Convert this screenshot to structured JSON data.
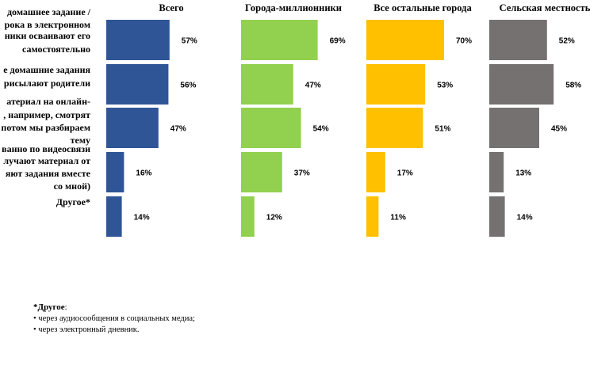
{
  "chart_data": {
    "type": "bar",
    "orientation": "horizontal",
    "layout": "small-multiples",
    "categories": [
      [
        "домашнее задание /",
        "рока в электронном",
        "ники осваивают его",
        "самостоятельно"
      ],
      [
        "е домашние задания",
        "рисылают родители"
      ],
      [
        "атериал на онлайн-",
        ", например, смотрят",
        "потом мы разбираем",
        "тему"
      ],
      [
        "ванно по видеосвязи",
        "лучают материал от",
        "яют задания вместе",
        "со мной)"
      ],
      [
        "Другое*"
      ]
    ],
    "series": [
      {
        "name": "Всего",
        "color": "#2F5597",
        "values": [
          57,
          56,
          47,
          16,
          14
        ]
      },
      {
        "name": "Города-миллионники",
        "color": "#92D050",
        "values": [
          69,
          47,
          54,
          37,
          12
        ]
      },
      {
        "name": "Все остальные города",
        "color": "#FFC000",
        "values": [
          70,
          53,
          51,
          17,
          11
        ]
      },
      {
        "name": "Сельская местность",
        "color": "#767171",
        "values": [
          52,
          58,
          45,
          13,
          14
        ]
      }
    ],
    "value_suffix": "%",
    "xlim": [
      0,
      100
    ],
    "grid": false,
    "legend": "none"
  },
  "footnote": {
    "title": "*Другое",
    "title_suffix": ":",
    "items": [
      "• через аудиосообщения в социальных медиа;",
      "• через электронный дневник."
    ]
  }
}
